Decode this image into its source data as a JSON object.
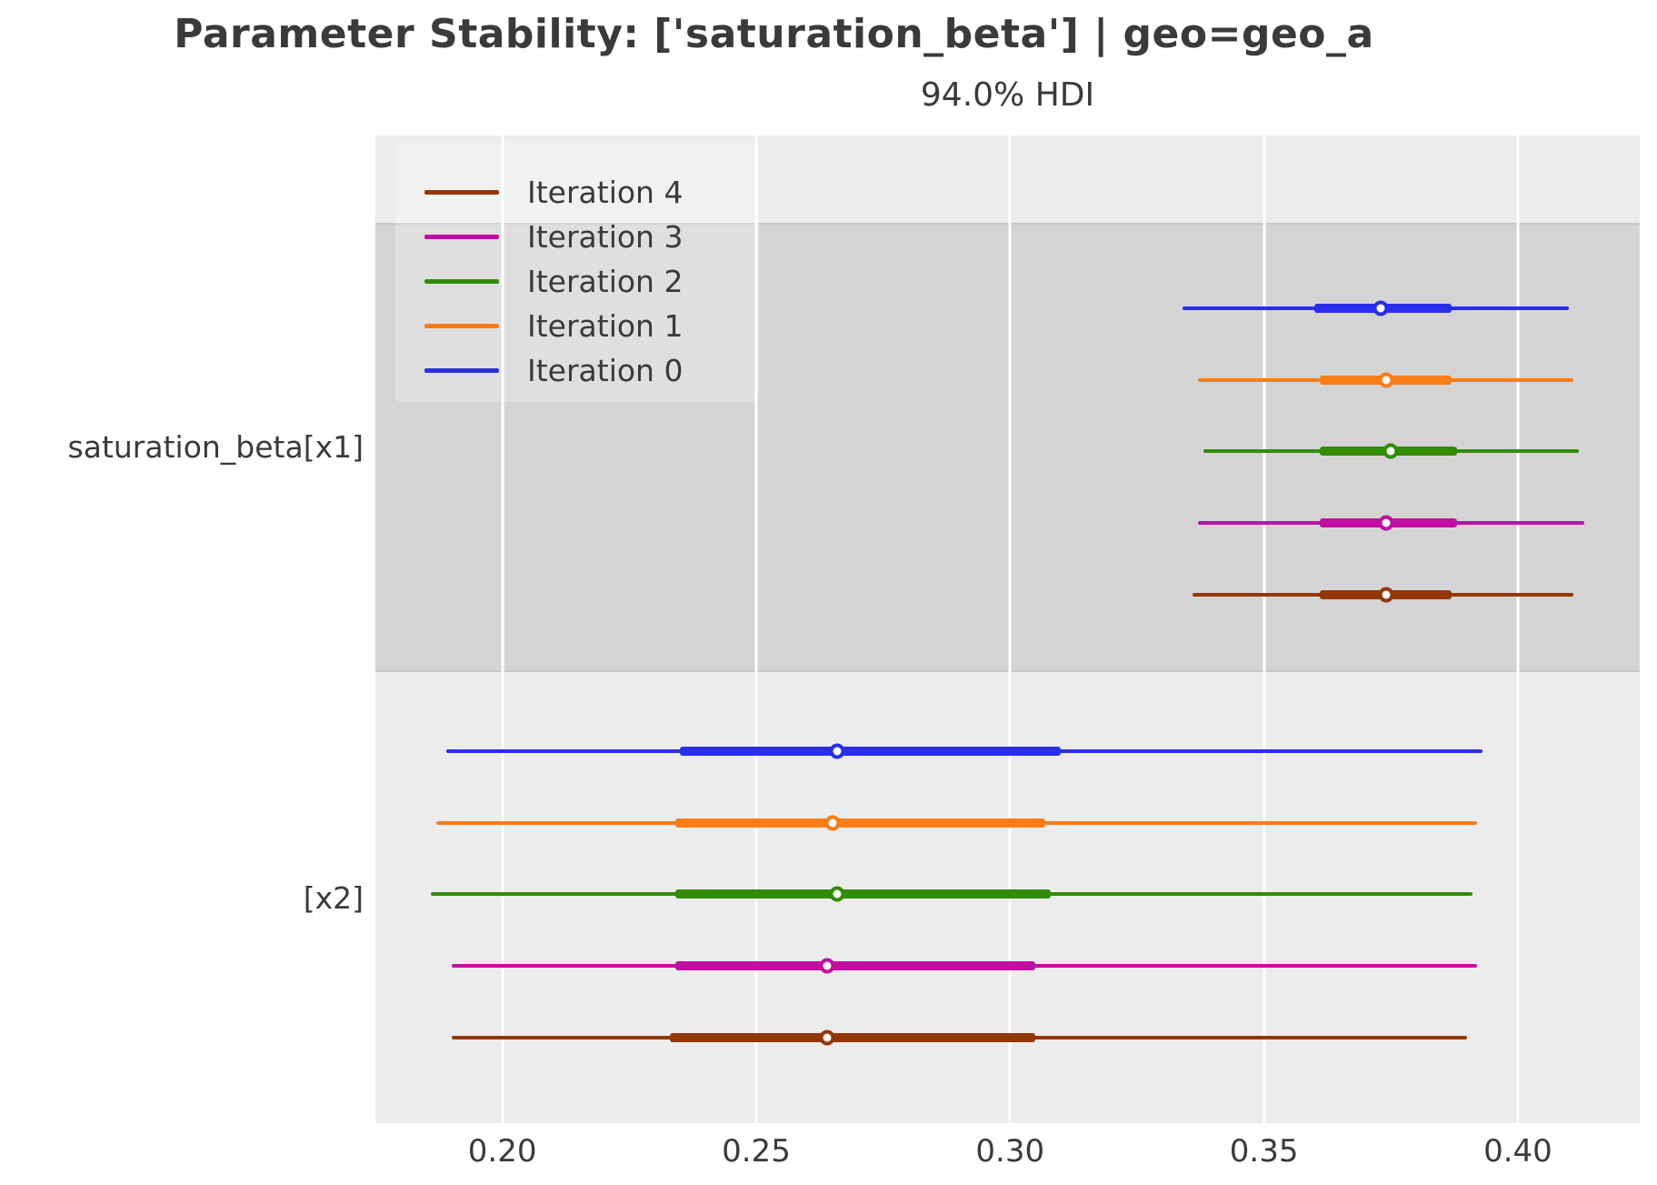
{
  "title": "Parameter Stability: ['saturation_beta'] | geo=geo_a",
  "subtitle": "94.0% HDI",
  "colors": {
    "iteration_0": "#2a2eec",
    "iteration_1": "#fa7c17",
    "iteration_2": "#328c06",
    "iteration_3": "#c10ea3",
    "iteration_4": "#933708",
    "band_light": "#ececec",
    "band_dark": "#d4d4d4",
    "gridline": "#ffffff",
    "text": "#3a3a3a",
    "marker_fill": "#fafafa"
  },
  "chart_data": {
    "type": "forest",
    "title": "Parameter Stability: ['saturation_beta'] | geo=geo_a",
    "subtitle": "94.0% HDI",
    "hdi_probability": "94.0%",
    "xlim": [
      0.175,
      0.424
    ],
    "x_ticks": [
      0.2,
      0.25,
      0.3,
      0.35,
      0.4
    ],
    "x_tick_labels": [
      "0.20",
      "0.25",
      "0.30",
      "0.35",
      "0.40"
    ],
    "grid": "vertical-white-on-gray-bands",
    "legend_position": "upper-left",
    "legend": [
      {
        "label": "Iteration 4",
        "color": "#933708"
      },
      {
        "label": "Iteration 3",
        "color": "#c10ea3"
      },
      {
        "label": "Iteration 2",
        "color": "#328c06"
      },
      {
        "label": "Iteration 1",
        "color": "#fa7c17"
      },
      {
        "label": "Iteration 0",
        "color": "#2a2eec"
      }
    ],
    "groups": [
      {
        "label": "saturation_beta[x1]",
        "band": "dark",
        "rows": [
          {
            "iteration": "Iteration 0",
            "color": "#2a2eec",
            "hdi": [
              0.334,
              0.41
            ],
            "quartile": [
              0.36,
              0.387
            ],
            "median": 0.373
          },
          {
            "iteration": "Iteration 1",
            "color": "#fa7c17",
            "hdi": [
              0.337,
              0.411
            ],
            "quartile": [
              0.361,
              0.387
            ],
            "median": 0.374
          },
          {
            "iteration": "Iteration 2",
            "color": "#328c06",
            "hdi": [
              0.338,
              0.412
            ],
            "quartile": [
              0.361,
              0.388
            ],
            "median": 0.375
          },
          {
            "iteration": "Iteration 3",
            "color": "#c10ea3",
            "hdi": [
              0.337,
              0.413
            ],
            "quartile": [
              0.361,
              0.388
            ],
            "median": 0.374
          },
          {
            "iteration": "Iteration 4",
            "color": "#933708",
            "hdi": [
              0.336,
              0.411
            ],
            "quartile": [
              0.361,
              0.387
            ],
            "median": 0.374
          }
        ]
      },
      {
        "label": "[x2]",
        "band": "light",
        "rows": [
          {
            "iteration": "Iteration 0",
            "color": "#2a2eec",
            "hdi": [
              0.189,
              0.393
            ],
            "quartile": [
              0.235,
              0.31
            ],
            "median": 0.266
          },
          {
            "iteration": "Iteration 1",
            "color": "#fa7c17",
            "hdi": [
              0.187,
              0.392
            ],
            "quartile": [
              0.234,
              0.307
            ],
            "median": 0.265
          },
          {
            "iteration": "Iteration 2",
            "color": "#328c06",
            "hdi": [
              0.186,
              0.391
            ],
            "quartile": [
              0.234,
              0.308
            ],
            "median": 0.266
          },
          {
            "iteration": "Iteration 3",
            "color": "#c10ea3",
            "hdi": [
              0.19,
              0.392
            ],
            "quartile": [
              0.234,
              0.305
            ],
            "median": 0.264
          },
          {
            "iteration": "Iteration 4",
            "color": "#933708",
            "hdi": [
              0.19,
              0.39
            ],
            "quartile": [
              0.233,
              0.305
            ],
            "median": 0.264
          }
        ]
      }
    ]
  }
}
